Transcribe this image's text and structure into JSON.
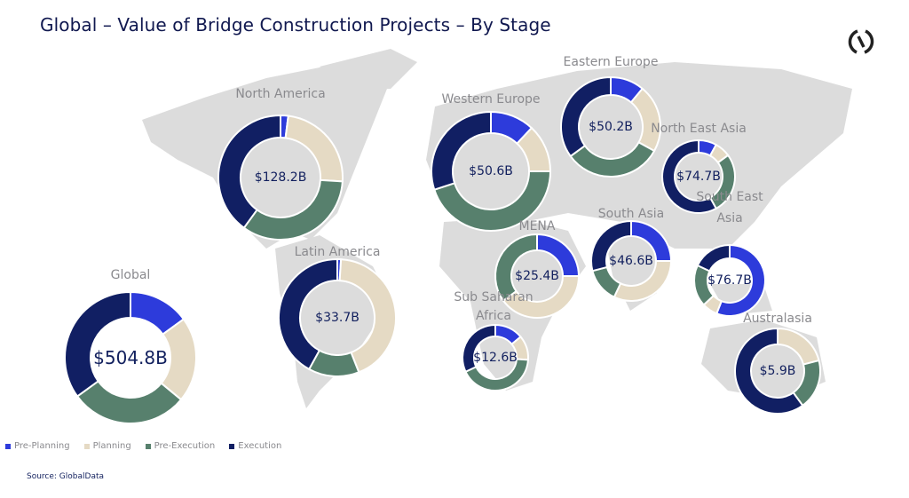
{
  "title": "Global – Value of Bridge Construction Projects – By Stage",
  "source": "Source: GlobalData",
  "logo_icon": "globaldata-logo-icon",
  "chart_data": {
    "type": "donut",
    "title": "Global – Value of Bridge Construction Projects – By Stage",
    "legend_position": "bottom-left",
    "stages": [
      "Pre-Planning",
      "Planning",
      "Pre-Execution",
      "Execution"
    ],
    "colors": {
      "Pre-Planning": "#2d3bdb",
      "Planning": "#e5dac4",
      "Pre-Execution": "#57806d",
      "Execution": "#111f63"
    },
    "unit": "% share of value (estimated from arc length)",
    "regions": [
      {
        "name": "Global",
        "label_lines": [
          "Global"
        ],
        "total": "$504.8B",
        "shares": [
          15,
          21,
          29,
          35
        ]
      },
      {
        "name": "North America",
        "label_lines": [
          "North America"
        ],
        "total": "$128.2B",
        "shares": [
          2,
          24,
          34,
          40
        ]
      },
      {
        "name": "Latin America",
        "label_lines": [
          "Latin America"
        ],
        "total": "$33.7B",
        "shares": [
          1,
          43,
          14,
          42
        ]
      },
      {
        "name": "Western Europe",
        "label_lines": [
          "Western Europe"
        ],
        "total": "$50.6B",
        "shares": [
          12,
          13,
          45,
          30
        ]
      },
      {
        "name": "Eastern Europe",
        "label_lines": [
          "Eastern Europe"
        ],
        "total": "$50.2B",
        "shares": [
          11,
          22,
          32,
          35
        ]
      },
      {
        "name": "North East Asia",
        "label_lines": [
          "North East Asia"
        ],
        "total": "$74.7B",
        "shares": [
          8,
          7,
          27,
          58
        ]
      },
      {
        "name": "MENA",
        "label_lines": [
          "MENA"
        ],
        "total": "$25.4B",
        "shares": [
          25,
          40,
          35,
          0
        ]
      },
      {
        "name": "South Asia",
        "label_lines": [
          "South Asia"
        ],
        "total": "$46.6B",
        "shares": [
          25,
          32,
          14,
          29
        ]
      },
      {
        "name": "South East Asia",
        "label_lines": [
          "South East",
          "Asia"
        ],
        "total": "$76.7B",
        "shares": [
          56,
          7,
          19,
          18
        ]
      },
      {
        "name": "Sub Saharan Africa",
        "label_lines": [
          "Sub Saharan",
          "Africa"
        ],
        "total": "$12.6B",
        "shares": [
          14,
          12,
          42,
          32
        ]
      },
      {
        "name": "Australasia",
        "label_lines": [
          "Australasia"
        ],
        "total": "$5.9B",
        "shares": [
          0,
          21,
          19,
          60
        ]
      }
    ]
  },
  "legend": [
    {
      "label": "Pre-Planning",
      "color": "#2d3bdb"
    },
    {
      "label": "Planning",
      "color": "#e5dac4"
    },
    {
      "label": "Pre-Execution",
      "color": "#57806d"
    },
    {
      "label": "Execution",
      "color": "#111f63"
    }
  ]
}
